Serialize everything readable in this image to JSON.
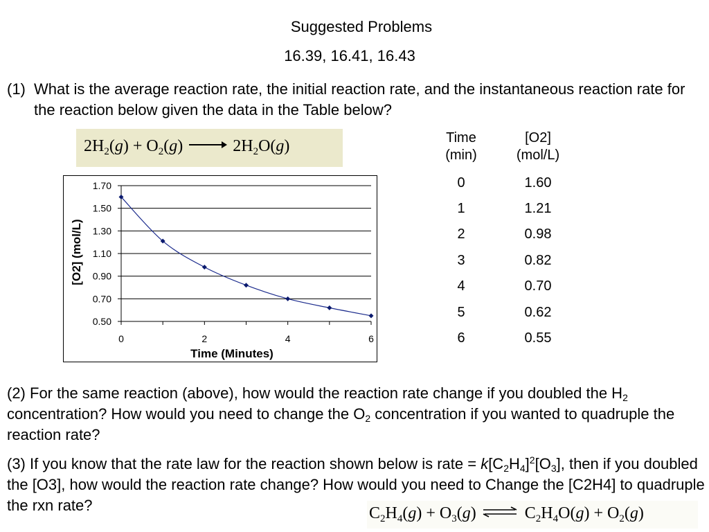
{
  "heading": {
    "title": "Suggested Problems",
    "problems": "16.39, 16.41, 16.43"
  },
  "question1": {
    "number": "(1)",
    "text": "What is the average reaction rate, the initial reaction rate, and the instantaneous reaction rate for the reaction below given the data in the Table below?"
  },
  "equation1": {
    "left": "2H",
    "h2_sub": "2",
    "g1": "g",
    "plus": "+ O",
    "o2_sub": "2",
    "g2": "g",
    "right": "2H",
    "h2o_sub": "2",
    "o": "O",
    "g3": "g"
  },
  "table": {
    "col1_header": [
      "Time",
      "(min)"
    ],
    "col2_header": [
      "[O2]",
      "(mol/L)"
    ],
    "rows": [
      {
        "time": "0",
        "conc": "1.60"
      },
      {
        "time": "1",
        "conc": "1.21"
      },
      {
        "time": "2",
        "conc": "0.98"
      },
      {
        "time": "3",
        "conc": "0.82"
      },
      {
        "time": "4",
        "conc": "0.70"
      },
      {
        "time": "5",
        "conc": "0.62"
      },
      {
        "time": "6",
        "conc": "0.55"
      }
    ]
  },
  "chart_data": {
    "type": "line",
    "x": [
      0,
      1,
      2,
      3,
      4,
      5,
      6
    ],
    "series": [
      {
        "values": [
          1.6,
          1.21,
          0.98,
          0.82,
          0.7,
          0.62,
          0.55
        ]
      }
    ],
    "title": "",
    "xlabel": "Time (Minutes)",
    "ylabel": "[O2] (mol/L)",
    "xlim": [
      0,
      6
    ],
    "ylim": [
      0.5,
      1.7
    ],
    "xticks": [
      "0",
      "2",
      "4",
      "6"
    ],
    "xtick_values": [
      0,
      2,
      4,
      6
    ],
    "yticks": [
      "0.50",
      "0.70",
      "0.90",
      "1.10",
      "1.30",
      "1.50",
      "1.70"
    ],
    "ytick_values": [
      0.5,
      0.7,
      0.9,
      1.1,
      1.3,
      1.5,
      1.7
    ],
    "grid": "horizontal",
    "line_color": "#1a2a8c",
    "marker_color": "#0b1a6e"
  },
  "question2": {
    "p1": "(2) For the same reaction (above), how would the reaction rate change if you doubled the H",
    "sub1": "2",
    "p2": " concentration?  How would you need to change the O",
    "sub2": "2",
    "p3": " concentration if you wanted to quadruple the reaction rate?"
  },
  "question3": {
    "p1": "(3) If you know that the rate law for the reaction shown below is rate = ",
    "k": "k",
    "p2": "[C",
    "sub1": "2",
    "p3": "H",
    "sub2": "4",
    "p4": "]",
    "sup1": "2",
    "p5": "[O",
    "sub3": "3",
    "p6": "], then if you doubled the [O3], how would the reaction rate change? How would you need to Change the [C2H4] to quadruple the rxn rate?"
  },
  "equation2": {
    "c": "C",
    "s1": "2",
    "h": "H",
    "s2": "4",
    "g1": "g",
    "plus1": "+ O",
    "s3": "3",
    "g2": "g",
    "c2": "C",
    "s4": "2",
    "h2": "H",
    "s5": "4",
    "o": "O",
    "g3": "g",
    "plus2": "+ O",
    "s6": "2",
    "g4": "g"
  }
}
